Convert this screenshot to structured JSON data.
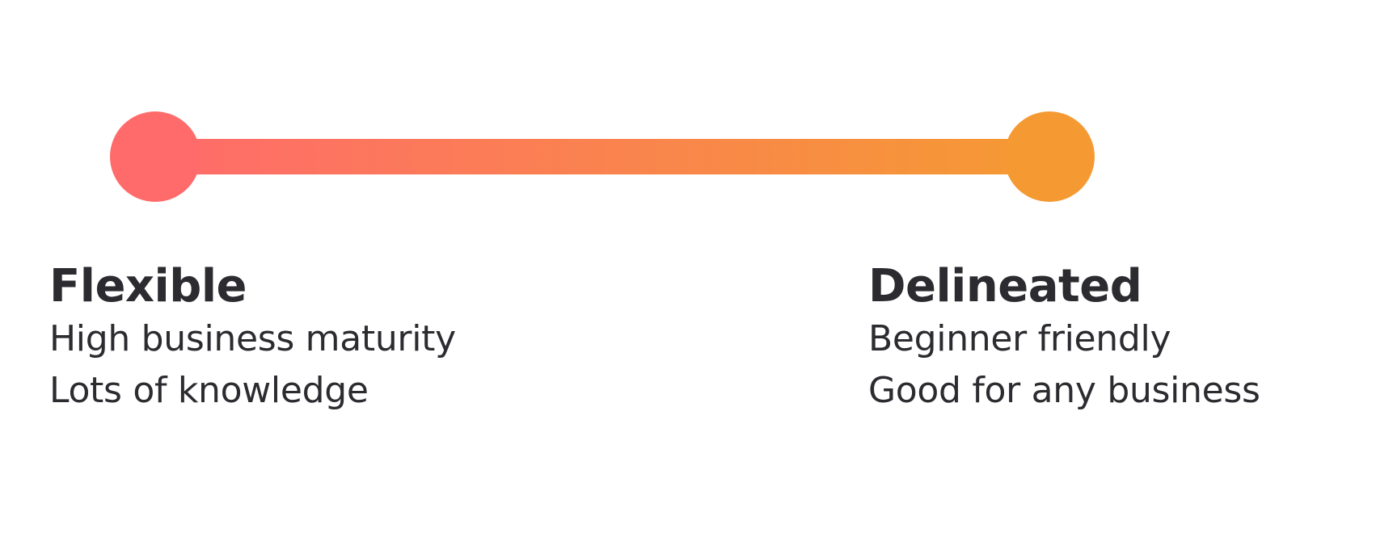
{
  "colors": {
    "start": "#ff6b6b",
    "end": "#f59a33",
    "text": "#2b2b30"
  },
  "scale": {
    "left": {
      "title": "Flexible",
      "lines": [
        "High business maturity",
        "Lots of knowledge"
      ]
    },
    "right": {
      "title": "Delineated",
      "lines": [
        "Beginner friendly",
        "Good for any business"
      ]
    }
  }
}
